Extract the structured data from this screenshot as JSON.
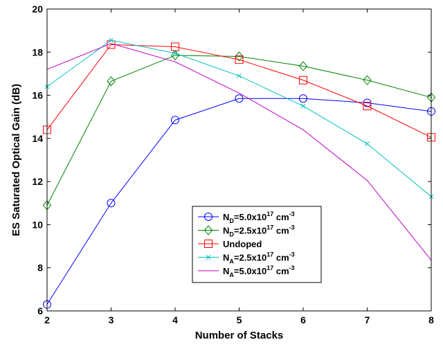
{
  "chart_data": {
    "type": "line",
    "title": "",
    "xlabel": "Number of Stacks",
    "ylabel": "ES Saturated Optical Gain (dB)",
    "xlim": [
      2,
      8
    ],
    "ylim": [
      6,
      20
    ],
    "x_ticks": [
      "2",
      "3",
      "4",
      "5",
      "6",
      "7",
      "8"
    ],
    "y_ticks": [
      "6",
      "8",
      "10",
      "12",
      "14",
      "16",
      "18",
      "20"
    ],
    "grid": false,
    "legend_position": "bottom-center",
    "x": [
      2,
      3,
      4,
      5,
      6,
      7,
      8
    ],
    "series": [
      {
        "legend": {
          "main": "N",
          "sub": "D",
          "mid": "=5.0x10",
          "sup": "17",
          "unit": " cm",
          "unit_sup": "-3"
        },
        "color": "#0000ff",
        "marker": "circle",
        "values": [
          6.3,
          11.0,
          14.85,
          15.85,
          15.85,
          15.65,
          15.25
        ]
      },
      {
        "legend": {
          "main": "N",
          "sub": "D",
          "mid": "=2.5x10",
          "sup": "17",
          "unit": " cm",
          "unit_sup": "-3"
        },
        "color": "#008000",
        "marker": "diamond",
        "values": [
          10.9,
          16.65,
          17.85,
          17.8,
          17.35,
          16.7,
          15.9
        ]
      },
      {
        "legend": {
          "main": "Undoped",
          "sub": "",
          "mid": "",
          "sup": "",
          "unit": "",
          "unit_sup": ""
        },
        "color": "#ff0000",
        "marker": "square",
        "values": [
          14.4,
          18.35,
          18.25,
          17.65,
          16.7,
          15.5,
          14.05
        ]
      },
      {
        "legend": {
          "main": "N",
          "sub": "A",
          "mid": "=2.5x10",
          "sup": "17",
          "unit": " cm",
          "unit_sup": "-3"
        },
        "color": "#00bfbf",
        "marker": "x",
        "values": [
          16.4,
          18.55,
          17.95,
          16.9,
          15.5,
          13.75,
          11.3
        ]
      },
      {
        "legend": {
          "main": "N",
          "sub": "A",
          "mid": "=5.0x10",
          "sup": "17",
          "unit": " cm",
          "unit_sup": "-3"
        },
        "color": "#bf00bf",
        "marker": "none",
        "values": [
          17.2,
          18.4,
          17.55,
          16.1,
          14.4,
          12.05,
          8.35
        ]
      }
    ]
  }
}
